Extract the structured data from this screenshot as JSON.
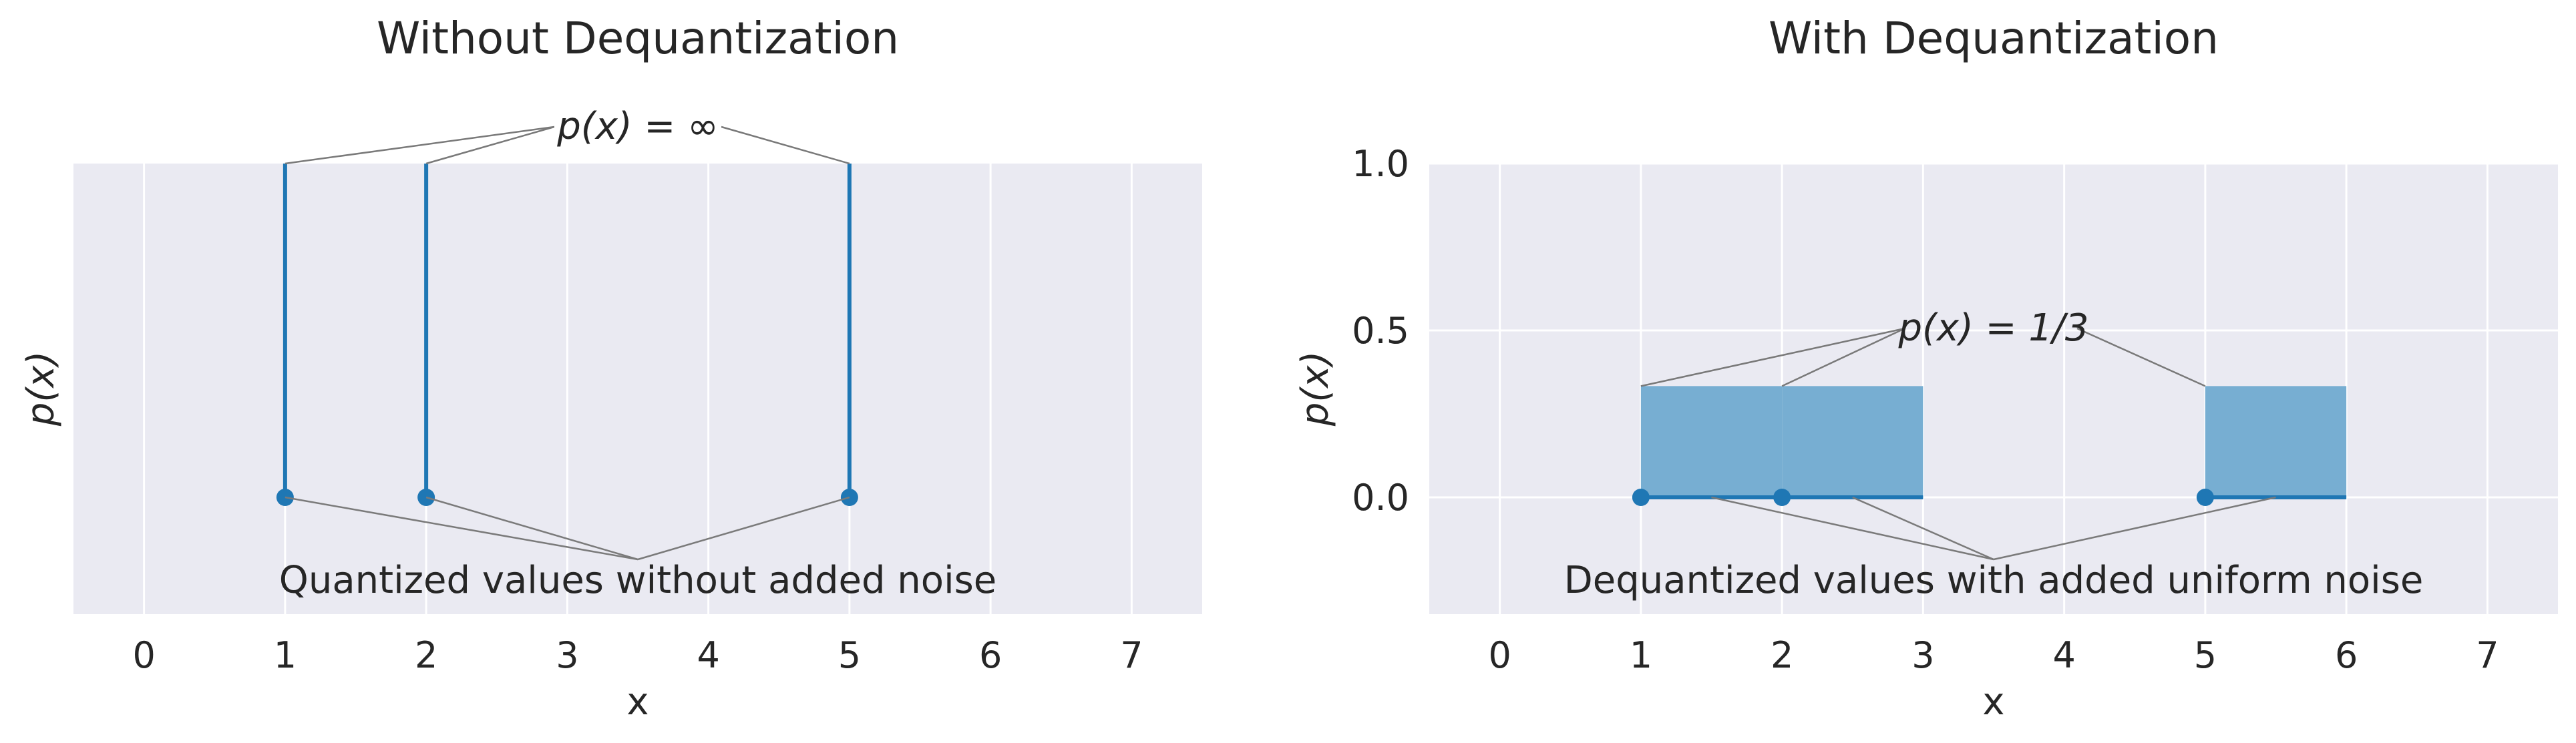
{
  "colors": {
    "axes_bg": "#eaeaf2",
    "grid": "#ffffff",
    "line": "#1f77b4",
    "fill": "#77aed2",
    "annotation_line": "#7a7a7a",
    "text": "#262626"
  },
  "chart_data": [
    {
      "type": "stem",
      "title": "Without Dequantization",
      "xlabel": "x",
      "ylabel": "p(x)",
      "xlim": [
        -0.5,
        7.5
      ],
      "x_ticks": [
        "0",
        "1",
        "2",
        "3",
        "4",
        "5",
        "6",
        "7"
      ],
      "y_ticks": [],
      "grid": true,
      "points": [
        {
          "x": 1,
          "y": 0
        },
        {
          "x": 2,
          "y": 0
        },
        {
          "x": 5,
          "y": 0
        }
      ],
      "stems_to_infinity": true,
      "annotation_top": "p(x) = ∞",
      "annotation_bottom": "Quantized values without added noise"
    },
    {
      "type": "area",
      "title": "With Dequantization",
      "xlabel": "x",
      "ylabel": "p(x)",
      "xlim": [
        -0.5,
        7.5
      ],
      "ylim": [
        -0.35,
        1.0
      ],
      "x_ticks": [
        "0",
        "1",
        "2",
        "3",
        "4",
        "5",
        "6",
        "7"
      ],
      "y_ticks": [
        "0.0",
        "0.5",
        "1.0"
      ],
      "grid": true,
      "points": [
        {
          "x": 1,
          "y": 0
        },
        {
          "x": 2,
          "y": 0
        },
        {
          "x": 5,
          "y": 0
        }
      ],
      "intervals": [
        {
          "x0": 1,
          "x1": 2,
          "density": 0.3333
        },
        {
          "x0": 2,
          "x1": 3,
          "density": 0.3333
        },
        {
          "x0": 5,
          "x1": 6,
          "density": 0.3333
        }
      ],
      "annotation_top": "p(x) = 1/3",
      "annotation_bottom": "Dequantized values with added uniform noise"
    }
  ]
}
